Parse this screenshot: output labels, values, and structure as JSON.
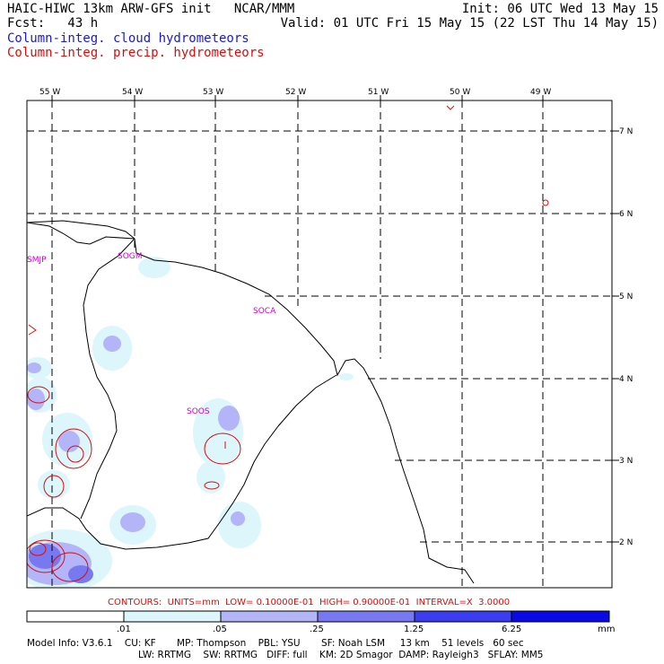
{
  "header": {
    "line1_left": "HAIC-HIWC 13km ARW-GFS init   NCAR/MMM",
    "line1_right": "Init: 06 UTC Wed 13 May 15",
    "line2_left": "Fcst:   43 h",
    "line2_right": "Valid: 01 UTC Fri 15 May 15 (22 LST Thu 14 May 15)",
    "line3": "Column-integ. cloud hydrometeors",
    "line4": "Column-integ. precip. hydrometeors"
  },
  "colors": {
    "cloud_field": "#1a1acc",
    "precip_contour": "#d01010",
    "station_label": "#cc00cc",
    "shade_levels": [
      "#ffffff",
      "#dcf6fc",
      "#b4b4f8",
      "#7878f0",
      "#3c3cf0",
      "#0a0ae6"
    ]
  },
  "map": {
    "lon_labels": [
      "55 W",
      "54 W",
      "53 W",
      "52 W",
      "51 W",
      "50 W",
      "49 W"
    ],
    "lat_labels": [
      "7 N",
      "6 N",
      "5 N",
      "4 N",
      "3 N",
      "2 N"
    ],
    "stations": [
      "SMJP",
      "SOGM",
      "SOCA",
      "SOOS"
    ],
    "grid_style": "dashed"
  },
  "contours_line": "CONTOURS:  UNITS=mm  LOW= 0.10000E-01  HIGH= 0.90000E-01  INTERVAL=X  3.0000",
  "colorbar": {
    "labels": [
      ".01",
      ".05",
      ".25",
      "1.25",
      "6.25"
    ],
    "units": "mm"
  },
  "model_info": {
    "row1": "Model Info: V3.6.1    CU: KF       MP: Thompson    PBL: YSU       SF: Noah LSM     13 km    51 levels   60 sec",
    "row2": "LW: RRTMG    SW: RRTMG   DIFF: full    KM: 2D Smagor  DAMP: Rayleigh3   SFLAY: MM5"
  }
}
